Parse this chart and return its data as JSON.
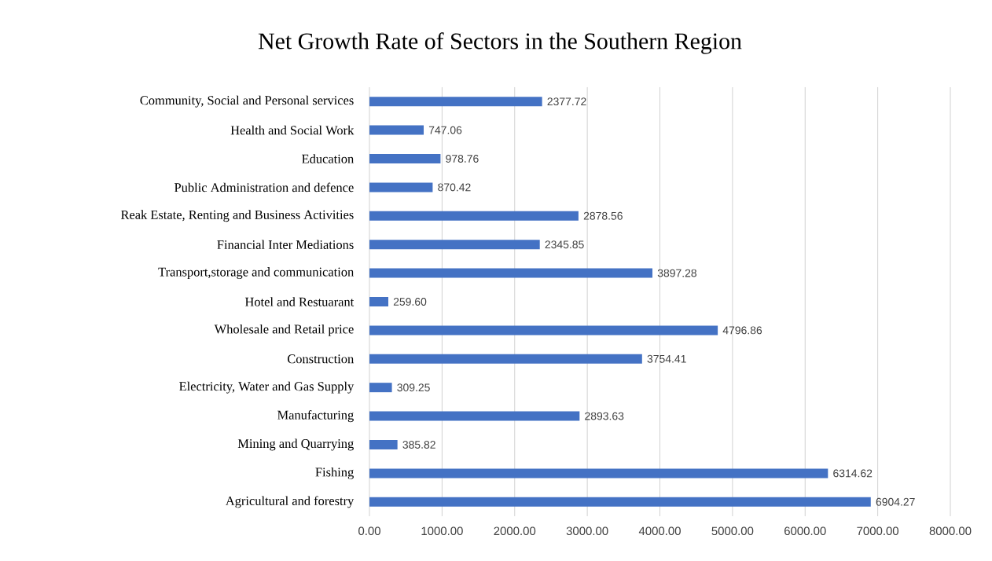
{
  "chart_data": {
    "type": "bar",
    "orientation": "horizontal",
    "title": "Net Growth Rate of Sectors in the Southern Region",
    "categories": [
      "Community, Social and Personal services",
      "Health and Social Work",
      "Education",
      "Public Administration and defence",
      "Reak Estate, Renting and Business Activities",
      "Financial Inter Mediations",
      "Transport,storage and communication",
      "Hotel and Restuarant",
      "Wholesale and Retail price",
      "Construction",
      "Electricity, Water and Gas Supply",
      "Manufacturing",
      "Mining and Quarrying",
      "Fishing",
      "Agricultural and forestry"
    ],
    "values": [
      2377.72,
      747.06,
      978.76,
      870.42,
      2878.56,
      2345.85,
      3897.28,
      259.6,
      4796.86,
      3754.41,
      309.25,
      2893.63,
      385.82,
      6314.62,
      6904.27
    ],
    "value_labels": [
      "2377.72",
      "747.06",
      "978.76",
      "870.42",
      "2878.56",
      "2345.85",
      "3897.28",
      "259.60",
      "4796.86",
      "3754.41",
      "309.25",
      "2893.63",
      "385.82",
      "6314.62",
      "6904.27"
    ],
    "color": "#4472c4",
    "xlim": [
      0,
      8000
    ],
    "xticks": [
      {
        "value": 0,
        "label": "0.00"
      },
      {
        "value": 1000,
        "label": "1000.00"
      },
      {
        "value": 2000,
        "label": "2000.00"
      },
      {
        "value": 3000,
        "label": "3000.00"
      },
      {
        "value": 4000,
        "label": "4000.00"
      },
      {
        "value": 5000,
        "label": "5000.00"
      },
      {
        "value": 6000,
        "label": "6000.00"
      },
      {
        "value": 7000,
        "label": "7000.00"
      },
      {
        "value": 8000,
        "label": "8000.00"
      }
    ],
    "grid": "x"
  }
}
